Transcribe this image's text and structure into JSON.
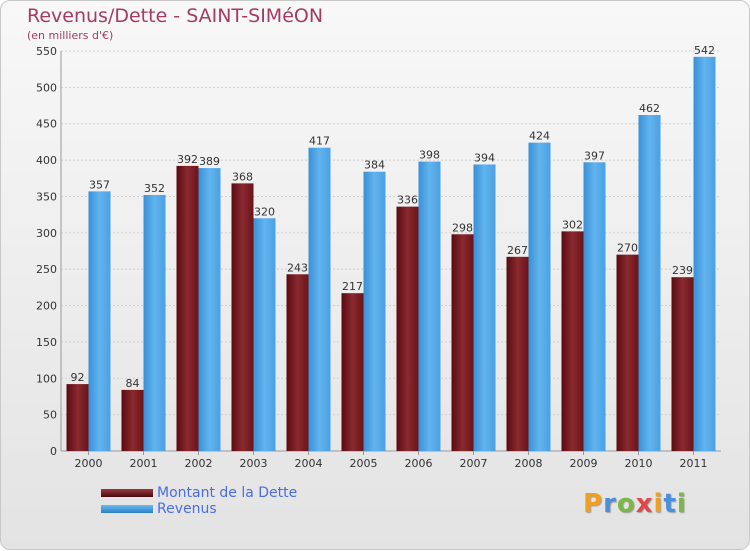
{
  "header": {
    "title": "Revenus/Dette - SAINT-SIMéON",
    "subtitle": "(en milliers d'€)"
  },
  "chart_data": {
    "type": "bar",
    "title": "Revenus/Dette - SAINT-SIMéON",
    "ylabel": "(en milliers d'€)",
    "xlabel": "",
    "categories": [
      "2000",
      "2001",
      "2002",
      "2003",
      "2004",
      "2005",
      "2006",
      "2007",
      "2008",
      "2009",
      "2010",
      "2011"
    ],
    "series": [
      {
        "name": "Montant de la Dette",
        "color": "#7a1c22",
        "values": [
          92,
          84,
          392,
          368,
          243,
          217,
          336,
          298,
          267,
          302,
          270,
          239
        ]
      },
      {
        "name": "Revenus",
        "color": "#4aa3e6",
        "values": [
          357,
          352,
          389,
          320,
          417,
          384,
          398,
          394,
          424,
          397,
          462,
          542
        ]
      }
    ],
    "ylim": [
      0,
      550
    ],
    "yticks": [
      0,
      50,
      100,
      150,
      200,
      250,
      300,
      350,
      400,
      450,
      500,
      550
    ],
    "grid": true,
    "legend_position": "bottom-left"
  },
  "legend": [
    {
      "label": "Montant de la Dette",
      "color": "#7a1c22"
    },
    {
      "label": "Revenus",
      "color": "#4aa3e6"
    }
  ],
  "logo": {
    "text": "Proxiti",
    "letters": [
      "P",
      "r",
      "o",
      "x",
      "i",
      "t",
      "i"
    ],
    "colors": [
      "#f0a020",
      "#4a90d9",
      "#7ab648",
      "#e04848",
      "#f0a020",
      "#4a90d9",
      "#7ab648"
    ]
  }
}
